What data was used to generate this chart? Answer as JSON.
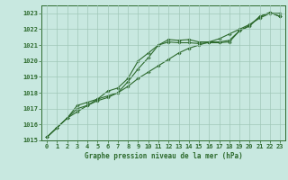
{
  "x": [
    0,
    1,
    2,
    3,
    4,
    5,
    6,
    7,
    8,
    9,
    10,
    11,
    12,
    13,
    14,
    15,
    16,
    17,
    18,
    19,
    20,
    21,
    22,
    23
  ],
  "line1": [
    1015.2,
    1015.8,
    1016.4,
    1016.8,
    1017.2,
    1017.6,
    1017.8,
    1018.0,
    1018.4,
    1018.9,
    1019.3,
    1019.7,
    1020.1,
    1020.5,
    1020.8,
    1021.0,
    1021.2,
    1021.4,
    1021.7,
    1022.0,
    1022.3,
    1022.7,
    1023.0,
    1023.0
  ],
  "line2": [
    1015.2,
    1015.8,
    1016.4,
    1017.0,
    1017.2,
    1017.5,
    1017.7,
    1018.0,
    1018.7,
    1019.5,
    1020.2,
    1021.0,
    1021.35,
    1021.3,
    1021.35,
    1021.2,
    1021.2,
    1021.2,
    1021.3,
    1021.9,
    1022.2,
    1022.8,
    1023.05,
    1022.8
  ],
  "line3": [
    1015.2,
    1015.8,
    1016.4,
    1017.2,
    1017.4,
    1017.6,
    1018.1,
    1018.3,
    1018.9,
    1020.0,
    1020.5,
    1021.0,
    1021.2,
    1021.15,
    1021.15,
    1021.1,
    1021.15,
    1021.15,
    1021.2,
    1021.9,
    1022.25,
    1022.8,
    1023.05,
    1022.8
  ],
  "line_color": "#2d6a2d",
  "bg_color": "#c8e8e0",
  "grid_color": "#a0c8b8",
  "title": "Graphe pression niveau de la mer (hPa)",
  "ylim": [
    1015,
    1023.5
  ],
  "xlim": [
    -0.5,
    23.5
  ],
  "yticks": [
    1015,
    1016,
    1017,
    1018,
    1019,
    1020,
    1021,
    1022,
    1023
  ],
  "xticks": [
    0,
    1,
    2,
    3,
    4,
    5,
    6,
    7,
    8,
    9,
    10,
    11,
    12,
    13,
    14,
    15,
    16,
    17,
    18,
    19,
    20,
    21,
    22,
    23
  ],
  "marker": "D",
  "marker_size": 1.8,
  "line_width": 0.8,
  "tick_fontsize": 5.0,
  "title_fontsize": 5.5
}
